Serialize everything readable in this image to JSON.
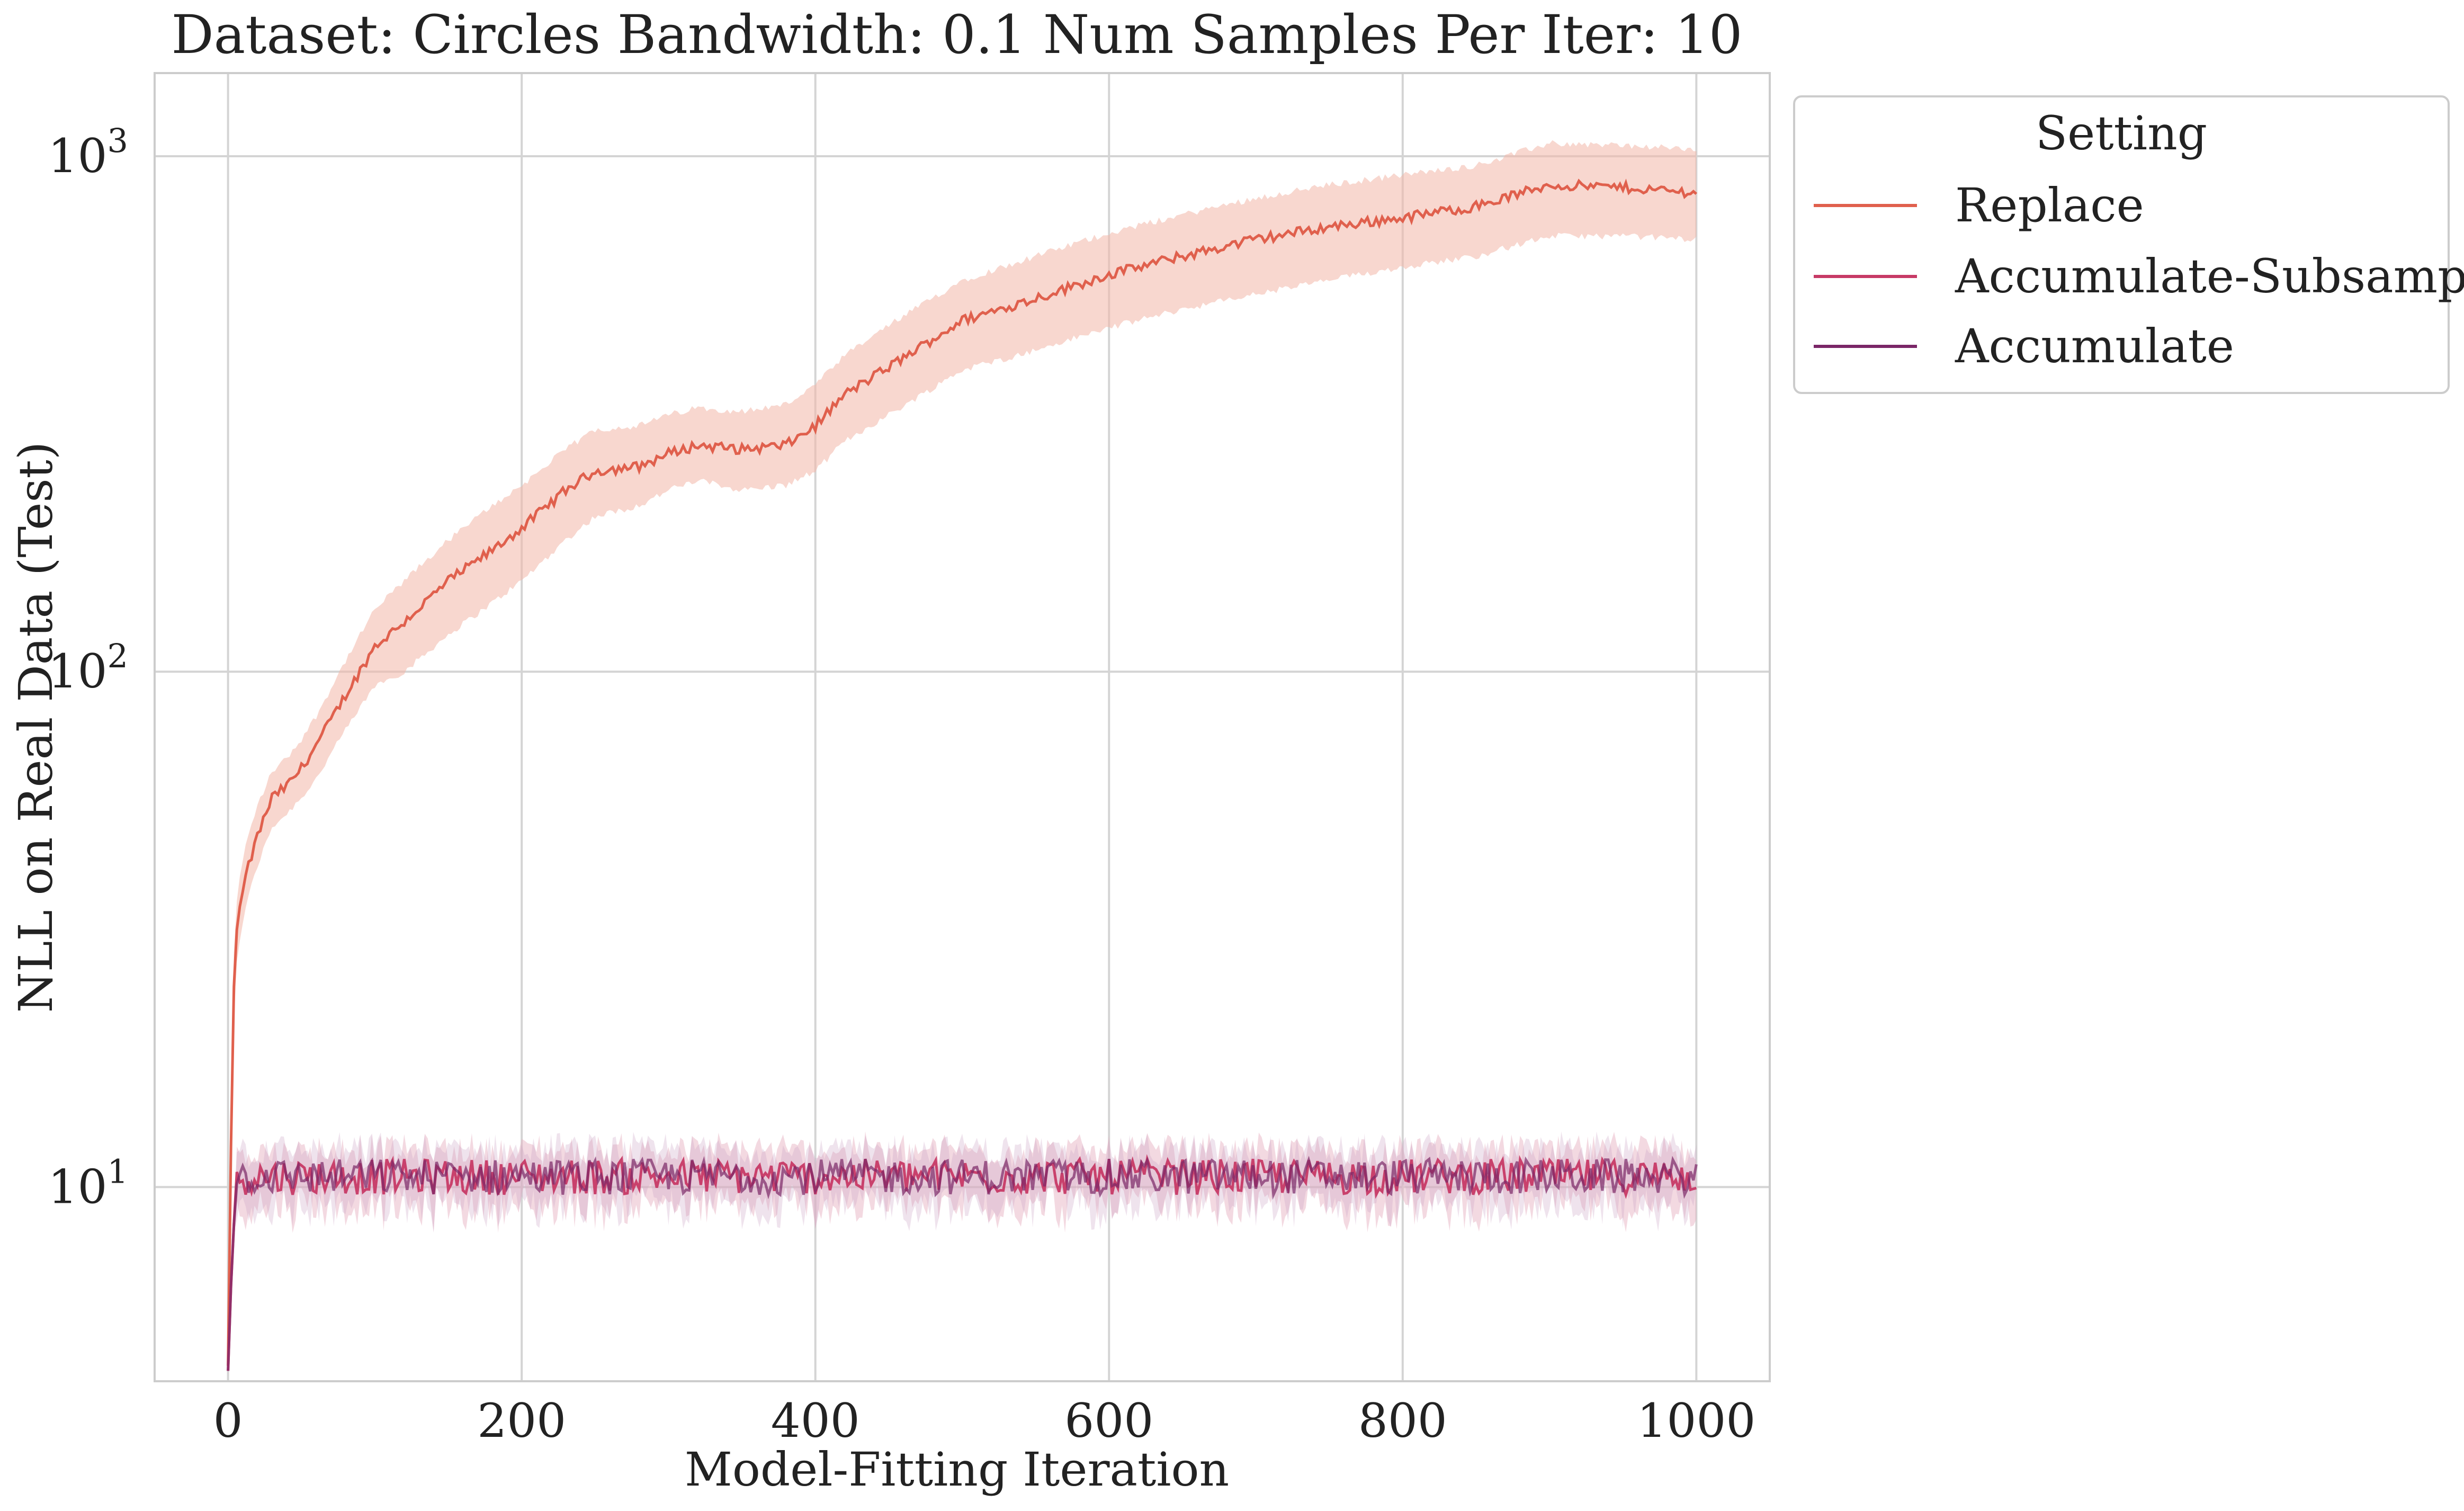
{
  "chart_data": {
    "type": "line",
    "title": "Dataset: Circles Bandwidth: 0.1 Num Samples Per Iter: 10",
    "xlabel": "Model-Fitting Iteration",
    "ylabel": "NLL on Real Data (Test)",
    "xlim": [
      -50,
      1050
    ],
    "ylim": [
      4.2,
      1450
    ],
    "yscale": "log",
    "grid": true,
    "x_ticks": [
      0,
      200,
      400,
      600,
      800,
      1000
    ],
    "x_tick_labels": [
      "0",
      "200",
      "400",
      "600",
      "800",
      "1000"
    ],
    "y_ticks": [
      10,
      100,
      1000
    ],
    "y_tick_labels": [
      {
        "base": "10",
        "exp": "1"
      },
      {
        "base": "10",
        "exp": "2"
      },
      {
        "base": "10",
        "exp": "3"
      }
    ],
    "legend": {
      "title": "Setting",
      "placement": "outside-upper-right"
    },
    "series": [
      {
        "name": "Replace",
        "color": "#e0604d",
        "band_color": "#f3b6a8",
        "x": [
          0,
          1,
          2,
          3,
          5,
          8,
          12,
          20,
          30,
          40,
          50,
          60,
          80,
          100,
          120,
          150,
          180,
          200,
          230,
          250,
          280,
          300,
          320,
          350,
          380,
          400,
          420,
          450,
          500,
          550,
          600,
          650,
          700,
          750,
          800,
          850,
          900,
          950,
          1000
        ],
        "y": [
          4.5,
          6.5,
          12,
          20,
          30,
          35,
          40,
          48,
          57,
          60,
          65,
          72,
          90,
          112,
          125,
          150,
          172,
          190,
          225,
          245,
          250,
          265,
          275,
          270,
          275,
          300,
          345,
          390,
          480,
          530,
          590,
          640,
          690,
          730,
          760,
          800,
          880,
          870,
          850
        ],
        "lower": [
          4.5,
          6.0,
          10,
          17,
          26,
          30,
          35,
          42,
          50,
          53,
          57,
          62,
          77,
          94,
          100,
          118,
          136,
          150,
          180,
          200,
          210,
          225,
          235,
          225,
          230,
          245,
          280,
          315,
          385,
          420,
          465,
          505,
          540,
          575,
          610,
          640,
          700,
          700,
          690
        ],
        "upper": [
          4.5,
          7.0,
          14,
          24,
          34,
          40,
          46,
          55,
          64,
          68,
          74,
          82,
          105,
          132,
          150,
          180,
          210,
          230,
          270,
          295,
          300,
          315,
          325,
          320,
          330,
          360,
          410,
          470,
          575,
          640,
          710,
          770,
          830,
          880,
          920,
          960,
          1060,
          1050,
          1030
        ]
      },
      {
        "name": "Accumulate-Subsample",
        "color": "#c73a66",
        "band_color": "#e8b3c4",
        "mean": 10.5,
        "band_half_width": 1.2
      },
      {
        "name": "Accumulate",
        "color": "#7a2667",
        "band_color": "#c9a3c3",
        "mean": 10.5,
        "band_half_width": 1.2
      }
    ]
  }
}
